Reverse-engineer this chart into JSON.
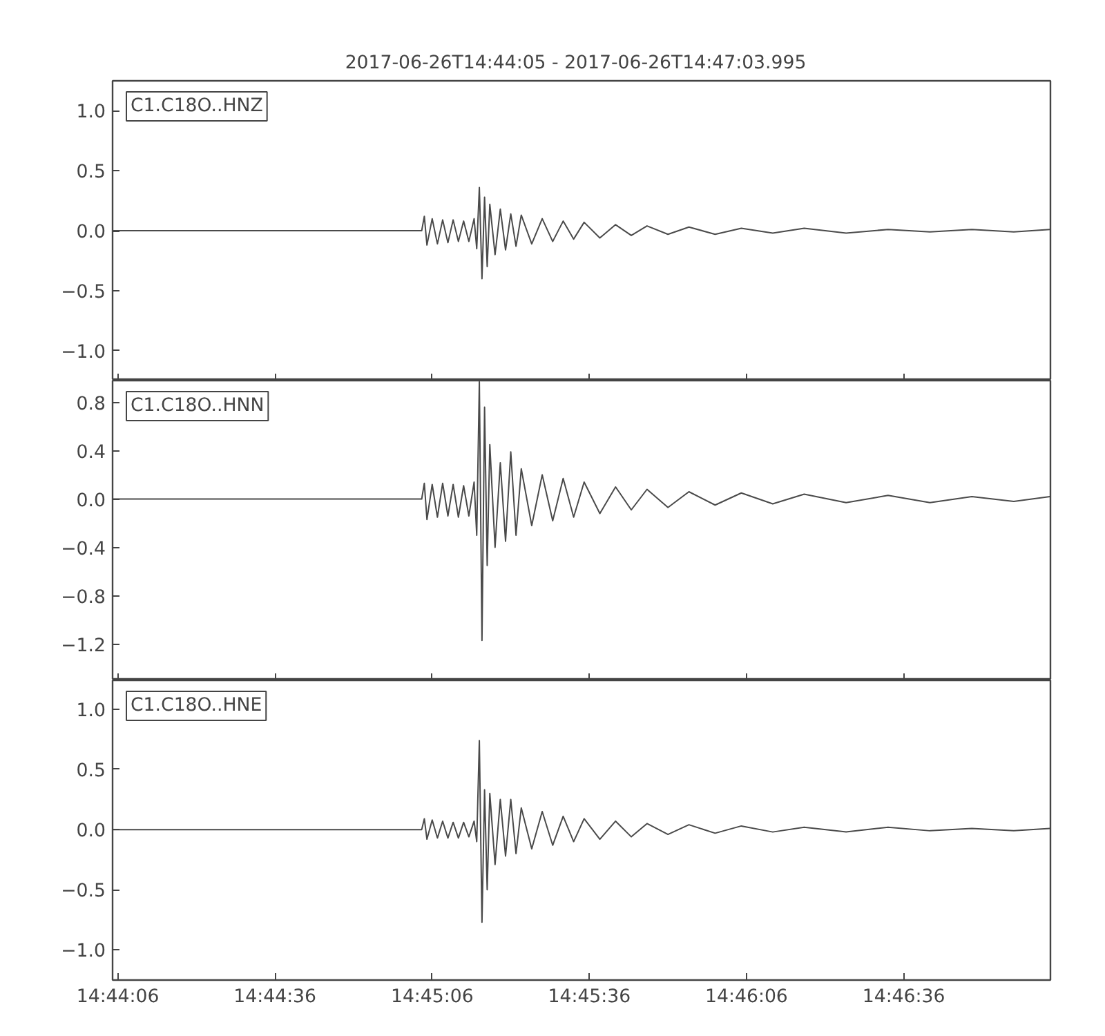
{
  "chart_data": [
    {
      "type": "line",
      "title": "2017-06-26T14:44:05  -  2017-06-26T14:47:03.995",
      "annotations": [
        "C1.C18O..HNZ"
      ],
      "color": "#4a4a4a",
      "tick_labels": "y",
      "xlim": [
        14.734722,
        14.784444
      ],
      "xticks": [
        {
          "value": 14.735,
          "label": null
        },
        {
          "value": 14.743333,
          "label": null
        },
        {
          "value": 14.751667,
          "label": null
        },
        {
          "value": 14.76,
          "label": null
        },
        {
          "value": 14.768333,
          "label": null
        },
        {
          "value": 14.776667,
          "label": null
        }
      ],
      "ylim": [
        -1.25,
        1.25
      ],
      "yticks": [
        {
          "value": -1.0,
          "label": "−1.0"
        },
        {
          "value": -0.5,
          "label": "−0.5"
        },
        {
          "value": 0.0,
          "label": "0.0"
        },
        {
          "value": 0.5,
          "label": "0.5"
        },
        {
          "value": 1.0,
          "label": "1.0"
        }
      ],
      "x": [
        14.734722,
        14.751111,
        14.75125,
        14.751389,
        14.751667,
        14.751944,
        14.752222,
        14.7525,
        14.752778,
        14.753056,
        14.753333,
        14.753611,
        14.753889,
        14.754028,
        14.754167,
        14.754306,
        14.754444,
        14.754583,
        14.754722,
        14.755,
        14.755278,
        14.755556,
        14.755833,
        14.756111,
        14.756389,
        14.756944,
        14.7575,
        14.758056,
        14.758611,
        14.759167,
        14.759722,
        14.760556,
        14.761389,
        14.762222,
        14.763056,
        14.764167,
        14.765278,
        14.766667,
        14.768056,
        14.769722,
        14.771389,
        14.773611,
        14.775833,
        14.778056,
        14.780278,
        14.7825,
        14.784417
      ],
      "values": [
        0,
        0,
        0.12,
        -0.12,
        0.1,
        -0.11,
        0.09,
        -0.1,
        0.09,
        -0.09,
        0.08,
        -0.09,
        0.1,
        -0.15,
        0.36,
        -0.4,
        0.28,
        -0.3,
        0.22,
        -0.2,
        0.18,
        -0.16,
        0.14,
        -0.13,
        0.13,
        -0.11,
        0.1,
        -0.09,
        0.08,
        -0.07,
        0.07,
        -0.06,
        0.05,
        -0.04,
        0.04,
        -0.03,
        0.03,
        -0.03,
        0.02,
        -0.02,
        0.02,
        -0.02,
        0.01,
        -0.01,
        0.01,
        -0.01,
        0.01
      ]
    },
    {
      "type": "line",
      "annotations": [
        "C1.C18O..HNN"
      ],
      "color": "#4a4a4a",
      "tick_labels": "y",
      "xlim": [
        14.734722,
        14.784444
      ],
      "xticks": [
        {
          "value": 14.735,
          "label": null
        },
        {
          "value": 14.743333,
          "label": null
        },
        {
          "value": 14.751667,
          "label": null
        },
        {
          "value": 14.76,
          "label": null
        },
        {
          "value": 14.768333,
          "label": null
        },
        {
          "value": 14.776667,
          "label": null
        }
      ],
      "ylim": [
        -1.5,
        0.98
      ],
      "yticks": [
        {
          "value": -1.2,
          "label": "−1.2"
        },
        {
          "value": -0.8,
          "label": "−0.8"
        },
        {
          "value": -0.4,
          "label": "−0.4"
        },
        {
          "value": 0.0,
          "label": "0.0"
        },
        {
          "value": 0.4,
          "label": "0.4"
        },
        {
          "value": 0.8,
          "label": "0.8"
        }
      ],
      "x": [
        14.734722,
        14.751111,
        14.75125,
        14.751389,
        14.751667,
        14.751944,
        14.752222,
        14.7525,
        14.752778,
        14.753056,
        14.753333,
        14.753611,
        14.753889,
        14.754028,
        14.754167,
        14.754306,
        14.754444,
        14.754583,
        14.754722,
        14.755,
        14.755278,
        14.755556,
        14.755833,
        14.756111,
        14.756389,
        14.756944,
        14.7575,
        14.758056,
        14.758611,
        14.759167,
        14.759722,
        14.760556,
        14.761389,
        14.762222,
        14.763056,
        14.764167,
        14.765278,
        14.766667,
        14.768056,
        14.769722,
        14.771389,
        14.773611,
        14.775833,
        14.778056,
        14.780278,
        14.7825,
        14.784417
      ],
      "values": [
        0,
        0,
        0.13,
        -0.17,
        0.12,
        -0.15,
        0.13,
        -0.14,
        0.12,
        -0.15,
        0.11,
        -0.14,
        0.14,
        -0.3,
        0.97,
        -1.17,
        0.76,
        -0.55,
        0.45,
        -0.4,
        0.3,
        -0.35,
        0.39,
        -0.3,
        0.25,
        -0.22,
        0.2,
        -0.18,
        0.17,
        -0.15,
        0.14,
        -0.12,
        0.1,
        -0.09,
        0.08,
        -0.07,
        0.06,
        -0.05,
        0.05,
        -0.04,
        0.04,
        -0.03,
        0.03,
        -0.03,
        0.02,
        -0.02,
        0.02
      ]
    },
    {
      "type": "line",
      "annotations": [
        "C1.C18O..HNE"
      ],
      "color": "#4a4a4a",
      "xlim": [
        14.734722,
        14.784444
      ],
      "xticks": [
        {
          "value": 14.735,
          "label": "14:44:06"
        },
        {
          "value": 14.743333,
          "label": "14:44:36"
        },
        {
          "value": 14.751667,
          "label": "14:45:06"
        },
        {
          "value": 14.76,
          "label": "14:45:36"
        },
        {
          "value": 14.768333,
          "label": "14:46:06"
        },
        {
          "value": 14.776667,
          "label": "14:46:36"
        }
      ],
      "ylim": [
        -1.25,
        1.24
      ],
      "yticks": [
        {
          "value": -1.0,
          "label": "−1.0"
        },
        {
          "value": -0.5,
          "label": "−0.5"
        },
        {
          "value": 0.0,
          "label": "0.0"
        },
        {
          "value": 0.5,
          "label": "0.5"
        },
        {
          "value": 1.0,
          "label": "1.0"
        }
      ],
      "x": [
        14.734722,
        14.751111,
        14.75125,
        14.751389,
        14.751667,
        14.751944,
        14.752222,
        14.7525,
        14.752778,
        14.753056,
        14.753333,
        14.753611,
        14.753889,
        14.754028,
        14.754167,
        14.754306,
        14.754444,
        14.754583,
        14.754722,
        14.755,
        14.755278,
        14.755556,
        14.755833,
        14.756111,
        14.756389,
        14.756944,
        14.7575,
        14.758056,
        14.758611,
        14.759167,
        14.759722,
        14.760556,
        14.761389,
        14.762222,
        14.763056,
        14.764167,
        14.765278,
        14.766667,
        14.768056,
        14.769722,
        14.771389,
        14.773611,
        14.775833,
        14.778056,
        14.780278,
        14.7825,
        14.784417
      ],
      "values": [
        0,
        0,
        0.09,
        -0.08,
        0.08,
        -0.07,
        0.07,
        -0.07,
        0.06,
        -0.07,
        0.06,
        -0.06,
        0.07,
        -0.1,
        0.74,
        -0.77,
        0.33,
        -0.5,
        0.3,
        -0.29,
        0.25,
        -0.22,
        0.25,
        -0.2,
        0.18,
        -0.16,
        0.15,
        -0.13,
        0.11,
        -0.1,
        0.09,
        -0.08,
        0.07,
        -0.06,
        0.05,
        -0.04,
        0.04,
        -0.03,
        0.03,
        -0.02,
        0.02,
        -0.02,
        0.02,
        -0.01,
        0.01,
        -0.01,
        0.01
      ]
    }
  ]
}
